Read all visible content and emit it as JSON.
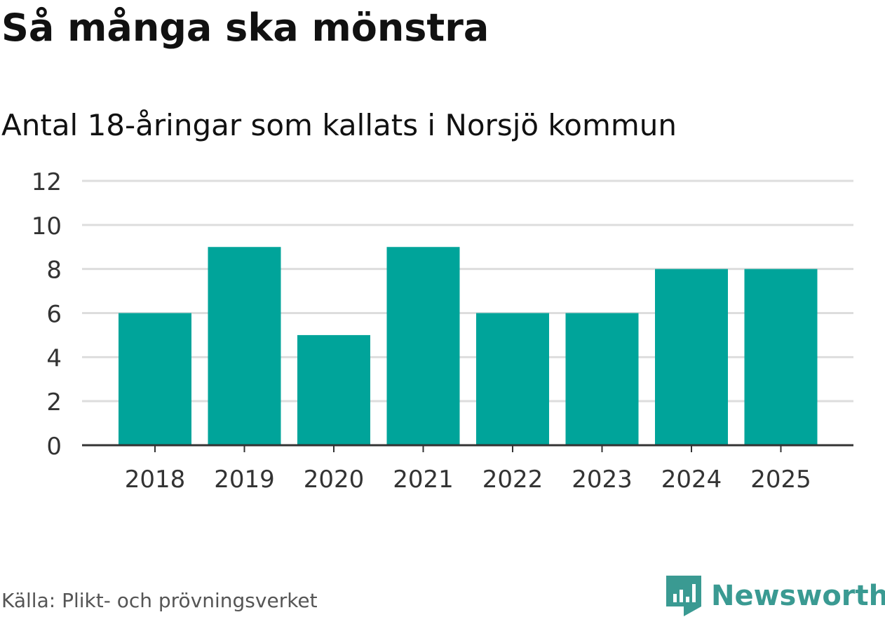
{
  "title": "Så många ska mönstra",
  "subtitle": "Antal 18-åringar som kallats i Norsjö kommun",
  "source": "Källa: Plikt- och prövningsverket",
  "brand": {
    "name": "Newsworthy",
    "color": "#3a9a92",
    "icon": "newsworthy-logo-icon"
  },
  "colors": {
    "bar": "#00a49a",
    "grid": "#dddddd",
    "axis": "#333333"
  },
  "chart_data": {
    "type": "bar",
    "categories": [
      "2018",
      "2019",
      "2020",
      "2021",
      "2022",
      "2023",
      "2024",
      "2025"
    ],
    "values": [
      6,
      9,
      5,
      9,
      6,
      6,
      8,
      8
    ],
    "yticks": [
      "0",
      "2",
      "4",
      "6",
      "8",
      "10",
      "12"
    ],
    "ylim": [
      0,
      12
    ],
    "grid": true
  }
}
